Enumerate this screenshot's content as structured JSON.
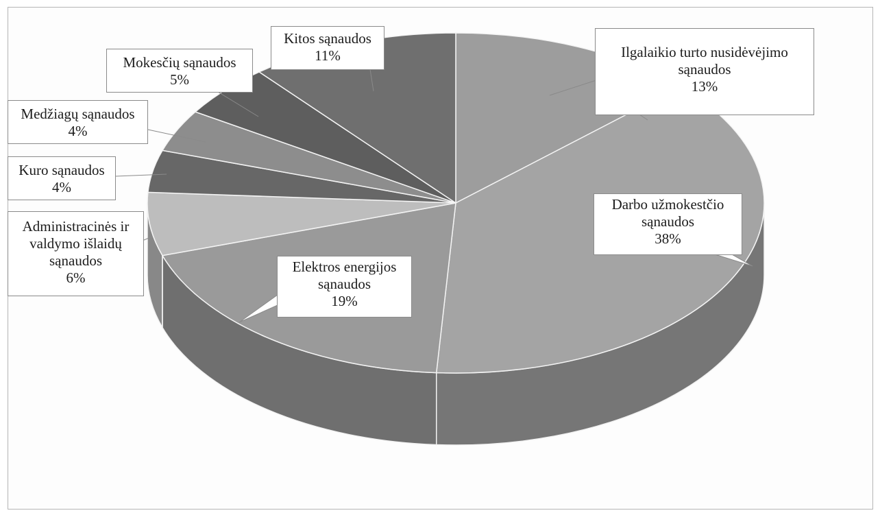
{
  "chart_data": {
    "type": "pie",
    "title": "",
    "style": "3d",
    "slices": [
      {
        "label": "Ilgalaikio turto nusidėvėjimo sąnaudos",
        "value": 13,
        "lines": [
          "Ilgalaikio turto nusidėvėjimo",
          "sąnaudos"
        ],
        "pct": "13%",
        "color": "#9d9d9d"
      },
      {
        "label": "Darbo užmokestčio sąnaudos",
        "value": 38,
        "lines": [
          "Darbo užmokestčio",
          "sąnaudos"
        ],
        "pct": "38%",
        "color": "#a4a4a4"
      },
      {
        "label": "Elektros energijos sąnaudos",
        "value": 19,
        "lines": [
          "Elektros energijos",
          "sąnaudos"
        ],
        "pct": "19%",
        "color": "#9a9a9a"
      },
      {
        "label": "Administracinės ir valdymo išlaidų sąnaudos",
        "value": 6,
        "lines": [
          "Administracinės ir",
          "valdymo išlaidų",
          "sąnaudos"
        ],
        "pct": "6%",
        "color": "#bdbdbd"
      },
      {
        "label": "Kuro sąnaudos",
        "value": 4,
        "lines": [
          "Kuro sąnaudos"
        ],
        "pct": "4%",
        "color": "#676767"
      },
      {
        "label": "Medžiagų sąnaudos",
        "value": 4,
        "lines": [
          "Medžiagų sąnaudos"
        ],
        "pct": "4%",
        "color": "#8d8d8d"
      },
      {
        "label": "Mokesčių sąnaudos",
        "value": 5,
        "lines": [
          "Mokesčių sąnaudos"
        ],
        "pct": "5%",
        "color": "#5e5e5e"
      },
      {
        "label": "Kitos sąnaudos",
        "value": 11,
        "lines": [
          "Kitos sąnaudos"
        ],
        "pct": "11%",
        "color": "#6f6f6f"
      }
    ]
  }
}
